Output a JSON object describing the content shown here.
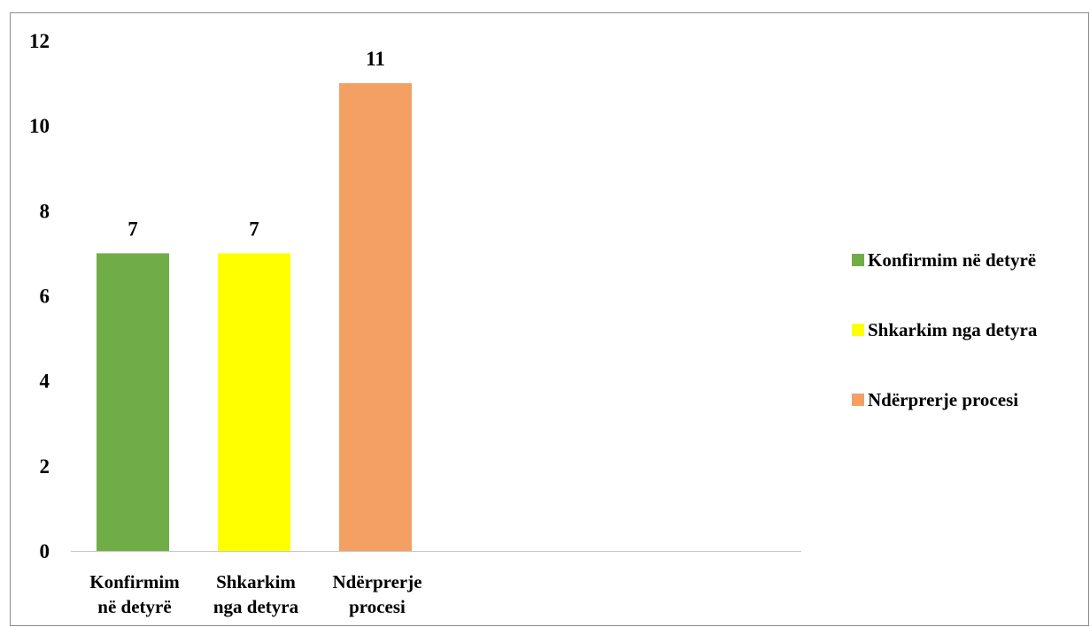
{
  "chart_data": {
    "type": "bar",
    "categories": [
      "Konfirmim në detyrë",
      "Shkarkim nga detyra",
      "Ndërprerje procesi"
    ],
    "category_tick_lines": [
      [
        "Konfirmim",
        "në detyrë"
      ],
      [
        "Shkarkim",
        "nga detyra"
      ],
      [
        "Ndërprerje",
        "procesi"
      ]
    ],
    "values": [
      7,
      7,
      11
    ],
    "colors": [
      "#70ad47",
      "#ffff00",
      "#f4a064"
    ],
    "title": "",
    "xlabel": "",
    "ylabel": "",
    "ylim": [
      0,
      12
    ],
    "yticks": [
      0,
      2,
      4,
      6,
      8,
      10,
      12
    ],
    "grid": false,
    "data_labels": true,
    "legend": {
      "placement": "right",
      "entries": [
        "Konfirmim në detyrë",
        "Shkarkim nga detyra",
        "Ndërprerje procesi"
      ]
    }
  }
}
